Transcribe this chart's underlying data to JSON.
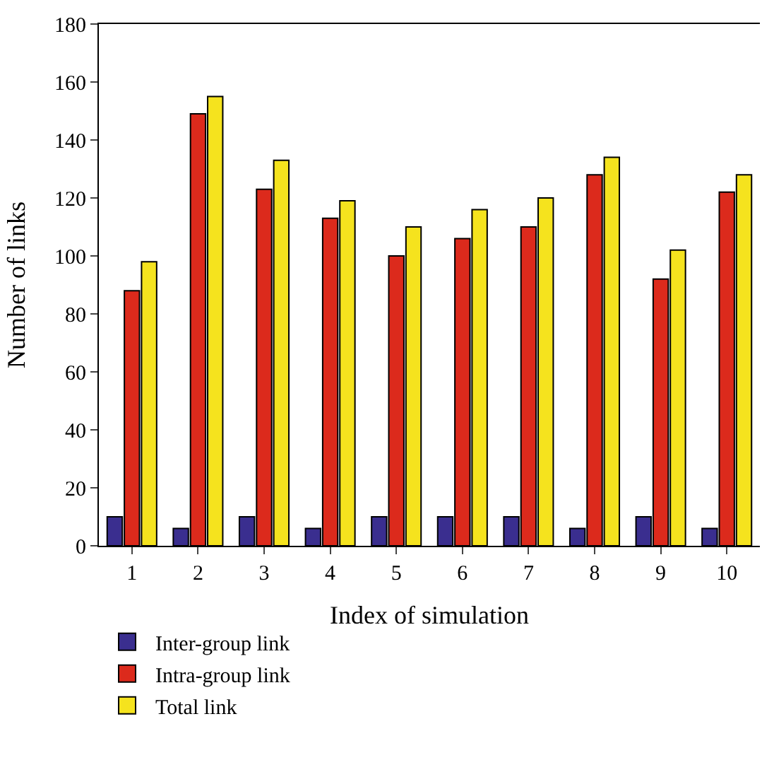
{
  "chart_data": {
    "type": "bar",
    "xlabel": "Index of simulation",
    "ylabel": "Number of links",
    "categories": [
      "1",
      "2",
      "3",
      "4",
      "5",
      "6",
      "7",
      "8",
      "9",
      "10"
    ],
    "series": [
      {
        "name": "Inter-group link",
        "color": "#3a2e8f",
        "values": [
          10,
          6,
          10,
          6,
          10,
          10,
          10,
          6,
          10,
          6
        ]
      },
      {
        "name": "Intra-group link",
        "color": "#dc2a1c",
        "values": [
          88,
          149,
          123,
          113,
          100,
          106,
          110,
          128,
          92,
          122
        ]
      },
      {
        "name": "Total link",
        "color": "#f5e31e",
        "values": [
          98,
          155,
          133,
          119,
          110,
          116,
          120,
          134,
          102,
          128
        ]
      }
    ],
    "ylim": [
      0,
      180
    ],
    "yticks": [
      0,
      20,
      40,
      60,
      80,
      100,
      120,
      140,
      160,
      180
    ],
    "legend": "bottom left"
  }
}
